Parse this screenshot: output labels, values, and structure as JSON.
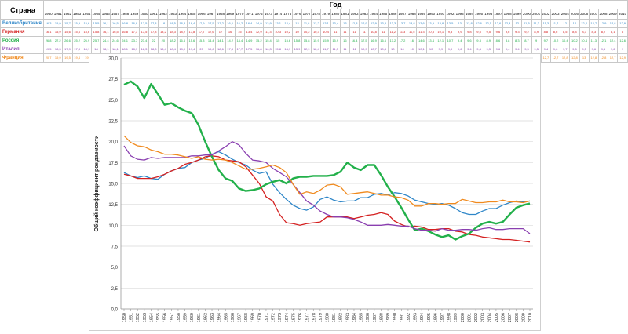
{
  "table": {
    "col_header": "Страна",
    "year_header": "Год",
    "years": [
      "1950",
      "1951",
      "1952",
      "1953",
      "1954",
      "1955",
      "1956",
      "1957",
      "1958",
      "1959",
      "1960",
      "1961",
      "1962",
      "1963",
      "1964",
      "1965",
      "1966",
      "1967",
      "1968",
      "1969",
      "1970",
      "1971",
      "1972",
      "1973",
      "1974",
      "1975",
      "1976",
      "1977",
      "1978",
      "1979",
      "1980",
      "1981",
      "1982",
      "1983",
      "1984",
      "1985",
      "1986",
      "1987",
      "1988",
      "1989",
      "1990",
      "1991",
      "1992",
      "1993",
      "1994",
      "1995",
      "1996",
      "1997",
      "1998",
      "1999",
      "2000",
      "2001",
      "2002",
      "2003",
      "2004",
      "2005",
      "2006",
      "2007",
      "2008",
      "2009",
      "2010"
    ]
  },
  "chart_data": {
    "type": "line",
    "ylabel": "Общий коэффициент рождаемости",
    "ylim": [
      0,
      30
    ],
    "yticks": [
      "0,0",
      "2,5",
      "5,0",
      "7,5",
      "10,0",
      "12,5",
      "15,0",
      "17,5",
      "20,0",
      "22,5",
      "25,0",
      "27,5",
      "30,0"
    ],
    "grid": true,
    "x": [
      "1950",
      "1951",
      "1952",
      "1953",
      "1954",
      "1955",
      "1956",
      "1957",
      "1958",
      "1959",
      "1960",
      "1961",
      "1962",
      "1963",
      "1964",
      "1965",
      "1966",
      "1967",
      "1968",
      "1969",
      "1970",
      "1971",
      "1972",
      "1973",
      "1974",
      "1975",
      "1976",
      "1977",
      "1978",
      "1979",
      "1980",
      "1981",
      "1982",
      "1983",
      "1984",
      "1985",
      "1986",
      "1987",
      "1988",
      "1989",
      "1990",
      "1991",
      "1992",
      "1993",
      "1994",
      "1995",
      "1996",
      "1997",
      "1998",
      "1999",
      "2000",
      "2001",
      "2002",
      "2003",
      "2004",
      "2005",
      "2006",
      "2007",
      "2008",
      "2009",
      "2010"
    ],
    "series": [
      {
        "name": "Великобритания",
        "color": "#2e86c8",
        "values": [
          16.3,
          15.9,
          15.7,
          15.9,
          15.6,
          15.5,
          16.1,
          16.5,
          16.8,
          16.9,
          17.5,
          17.8,
          18.0,
          18.5,
          18.8,
          18.4,
          17.9,
          17.5,
          17.2,
          16.6,
          16.2,
          16.4,
          14.9,
          13.9,
          13.1,
          12.4,
          12.0,
          11.8,
          12.2,
          13.1,
          13.4,
          13.0,
          12.8,
          12.9,
          12.9,
          13.3,
          13.3,
          13.7,
          13.8,
          13.6,
          13.9,
          13.8,
          13.5,
          13.0,
          12.8,
          12.6,
          12.5,
          12.6,
          12.4,
          12.0,
          11.5,
          11.3,
          11.3,
          11.7,
          12.0,
          12.0,
          12.4,
          12.7,
          12.9,
          12.8,
          12.9
        ]
      },
      {
        "name": "Германия",
        "color": "#d42020",
        "values": [
          16.1,
          15.9,
          15.6,
          15.6,
          15.6,
          15.8,
          16.1,
          16.5,
          16.8,
          17.3,
          17.5,
          17.8,
          18.2,
          18.3,
          18.2,
          17.8,
          17.7,
          17.6,
          17.0,
          16.0,
          15.0,
          13.4,
          12.9,
          11.3,
          10.3,
          10.2,
          10.0,
          10.2,
          10.3,
          10.4,
          11.0,
          11.0,
          11.0,
          11.0,
          10.8,
          11.0,
          11.2,
          11.3,
          11.5,
          11.3,
          10.5,
          10.1,
          9.8,
          9.9,
          9.8,
          9.5,
          9.5,
          9.6,
          9.6,
          9.3,
          9.2,
          8.9,
          8.8,
          8.6,
          8.5,
          8.4,
          8.3,
          8.3,
          8.2,
          8.1,
          8.0
        ]
      },
      {
        "name": "Россия",
        "color": "#22b04a",
        "values": [
          26.8,
          27.2,
          26.6,
          25.2,
          26.9,
          25.7,
          24.4,
          24.6,
          24.1,
          23.7,
          23.4,
          22.0,
          20.0,
          18.2,
          16.6,
          15.6,
          15.3,
          14.4,
          14.1,
          14.2,
          14.4,
          14.9,
          15.2,
          15.4,
          15.0,
          15.6,
          15.8,
          15.8,
          15.9,
          15.9,
          15.9,
          16.0,
          16.4,
          17.5,
          16.9,
          16.6,
          17.2,
          17.2,
          16.0,
          14.6,
          13.4,
          12.1,
          10.7,
          9.4,
          9.6,
          9.3,
          8.9,
          8.6,
          8.8,
          8.3,
          8.7,
          9.0,
          9.7,
          10.2,
          10.4,
          10.2,
          10.4,
          11.3,
          12.1,
          12.4,
          12.6
        ]
      },
      {
        "name": "Италия",
        "color": "#8a3fb0",
        "values": [
          19.5,
          18.3,
          17.9,
          17.8,
          18.1,
          18.0,
          18.1,
          18.1,
          18.1,
          18.1,
          18.3,
          18.3,
          18.4,
          18.4,
          18.9,
          19.4,
          20.0,
          19.6,
          18.6,
          17.8,
          17.7,
          17.5,
          16.8,
          16.3,
          15.8,
          14.9,
          13.9,
          12.9,
          12.4,
          11.7,
          11.3,
          11.0,
          11.0,
          10.9,
          10.7,
          10.4,
          10.0,
          10.0,
          10.0,
          10.1,
          10.0,
          9.9,
          9.9,
          9.6,
          9.4,
          9.4,
          9.3,
          9.6,
          9.4,
          9.4,
          9.5,
          9.5,
          9.4,
          9.6,
          9.7,
          9.5,
          9.5,
          9.6,
          9.6,
          9.6,
          9.0
        ]
      },
      {
        "name": "Франция",
        "color": "#f08a1e",
        "values": [
          20.7,
          19.9,
          19.5,
          19.4,
          19.0,
          18.8,
          18.5,
          18.5,
          18.4,
          18.2,
          18.0,
          18.2,
          17.9,
          17.8,
          17.9,
          17.8,
          17.5,
          17.1,
          16.7,
          16.7,
          16.8,
          17.0,
          17.2,
          16.9,
          16.3,
          14.9,
          13.7,
          14.0,
          13.8,
          14.2,
          14.8,
          14.9,
          14.6,
          13.7,
          13.8,
          13.9,
          14.0,
          13.8,
          13.6,
          13.6,
          13.4,
          13.3,
          13.0,
          12.3,
          12.3,
          12.6,
          12.6,
          12.5,
          12.6,
          12.6,
          13.1,
          12.9,
          12.7,
          12.7,
          12.8,
          12.8,
          13.0,
          12.8,
          12.8,
          12.7,
          12.9
        ]
      }
    ]
  }
}
